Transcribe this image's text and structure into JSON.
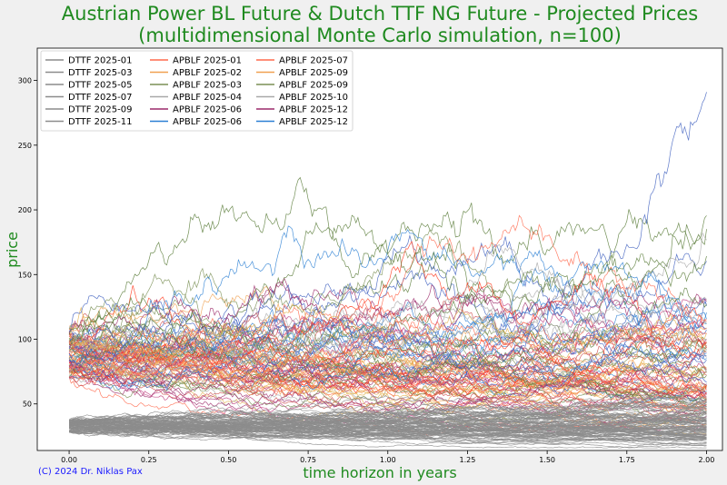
{
  "chart_data": {
    "type": "line",
    "title_line1": "Austrian Power BL Future & Dutch TTF NG Future - Projected Prices",
    "title_line2": "(multidimensional Monte Carlo simulation, n=100)",
    "xlabel": "time horizon in years",
    "ylabel": "price",
    "xlim": [
      -0.1,
      2.05
    ],
    "ylim": [
      14,
      325
    ],
    "xticks": [
      "0.00",
      "0.25",
      "0.50",
      "0.75",
      "1.00",
      "1.25",
      "1.50",
      "1.75",
      "2.00"
    ],
    "yticks": [
      "50",
      "100",
      "150",
      "200",
      "250",
      "300"
    ],
    "grid": false,
    "legend_position": "top-left",
    "legend_entries": [
      {
        "name": "DTTF 2025-01",
        "color": "#8c8c8c"
      },
      {
        "name": "DTTF 2025-03",
        "color": "#8c8c8c"
      },
      {
        "name": "DTTF 2025-05",
        "color": "#8c8c8c"
      },
      {
        "name": "DTTF 2025-07",
        "color": "#8c8c8c"
      },
      {
        "name": "DTTF 2025-09",
        "color": "#8c8c8c"
      },
      {
        "name": "DTTF 2025-11",
        "color": "#8c8c8c"
      },
      {
        "name": "APBLF 2025-01",
        "color": "#ff6a4d"
      },
      {
        "name": "APBLF 2025-02",
        "color": "#f0a050"
      },
      {
        "name": "APBLF 2025-03",
        "color": "#7a8f55"
      },
      {
        "name": "APBLF 2025-04",
        "color": "#a8a8a8"
      },
      {
        "name": "APBLF 2025-06",
        "color": "#9c2a6a"
      },
      {
        "name": "APBLF 2025-06",
        "color": "#2a7fd4"
      },
      {
        "name": "APBLF 2025-07",
        "color": "#ff6a4d"
      },
      {
        "name": "APBLF 2025-09",
        "color": "#f0a050"
      },
      {
        "name": "APBLF 2025-09",
        "color": "#7a8f55"
      },
      {
        "name": "APBLF 2025-10",
        "color": "#a8a8a8"
      },
      {
        "name": "APBLF 2025-12",
        "color": "#9c2a6a"
      },
      {
        "name": "APBLF 2025-12",
        "color": "#2a7fd4"
      }
    ],
    "series_groups": [
      {
        "group": "DTTF",
        "count": 100,
        "start_range": [
          28,
          38
        ],
        "volatility": 0.18,
        "color": "#8c8c8c"
      },
      {
        "group": "APBLF",
        "count": 100,
        "start_range": [
          70,
          110
        ],
        "volatility": 0.32,
        "colors": [
          "#ff6a4d",
          "#f0a050",
          "#7a8f55",
          "#a8a8a8",
          "#9c2a6a",
          "#2a7fd4",
          "#ff3b1f",
          "#e3b04b",
          "#5a7d3a",
          "#c04080",
          "#4060c0",
          "#d05050"
        ]
      }
    ],
    "horizon": [
      0,
      2
    ]
  },
  "copyright": "(C) 2024 Dr. Niklas Pax"
}
